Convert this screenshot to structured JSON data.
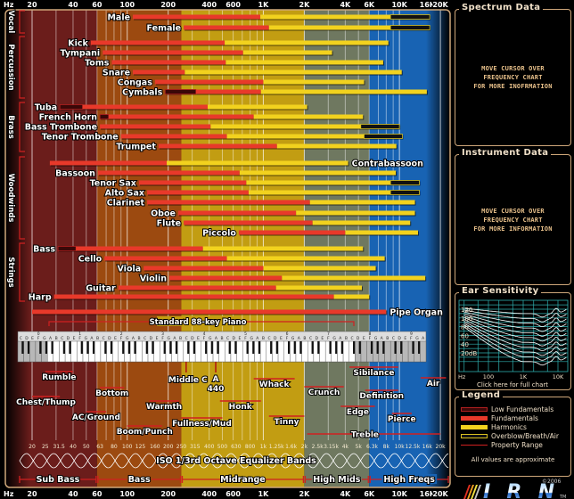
{
  "axis": {
    "unit": "Hz",
    "ticks": [
      {
        "label": "20",
        "hz": 20
      },
      {
        "label": "40",
        "hz": 40
      },
      {
        "label": "60",
        "hz": 60
      },
      {
        "label": "100",
        "hz": 100
      },
      {
        "label": "200",
        "hz": 200
      },
      {
        "label": "400",
        "hz": 400
      },
      {
        "label": "600",
        "hz": 600
      },
      {
        "label": "1K",
        "hz": 1000
      },
      {
        "label": "2K",
        "hz": 2000
      },
      {
        "label": "4K",
        "hz": 4000
      },
      {
        "label": "6K",
        "hz": 6000
      },
      {
        "label": "10K",
        "hz": 10000
      },
      {
        "label": "16K",
        "hz": 16000
      },
      {
        "label": "20K",
        "hz": 20000
      }
    ],
    "range_hz": [
      20,
      20000
    ],
    "scale": "log"
  },
  "groups": [
    "Vocal",
    "Percussion",
    "Brass",
    "Woodwinds",
    "Strings"
  ],
  "colors": {
    "sub_bass": "#6b1d1b",
    "bass": "#9c4a10",
    "midrange": "#c29d12",
    "high_mids": "#6f7860",
    "high_freqs": "#1863b3",
    "low_fundamentals": "#3a0808",
    "fundamentals": "#e8392a",
    "harmonics": "#f2d21e",
    "overblow": "#111111",
    "property_range": "#d02020",
    "frame": "#cfa77a"
  },
  "chart_data": {
    "type": "range-bar",
    "x_scale": "log",
    "xlim": [
      20,
      20000
    ],
    "instruments": [
      {
        "name": "Male",
        "group": "Vocal",
        "fund": [
          110,
          950
        ],
        "harm": [
          950,
          8600
        ],
        "over": [
          8600,
          16700
        ]
      },
      {
        "name": "Female",
        "group": "Vocal",
        "fund": [
          260,
          1100
        ],
        "harm": [
          1100,
          8600
        ],
        "over": [
          8600,
          16700
        ]
      },
      {
        "name": "Kick",
        "group": "Percussion",
        "fund": [
          54,
          520
        ],
        "harm": [
          520,
          8300
        ]
      },
      {
        "name": "Tympani",
        "group": "Percussion",
        "fund": [
          66,
          710
        ],
        "harm": [
          710,
          3200
        ]
      },
      {
        "name": "Toms",
        "group": "Percussion",
        "fund": [
          77,
          530
        ],
        "harm": [
          530,
          7600
        ]
      },
      {
        "name": "Snare",
        "group": "Percussion",
        "fund": [
          110,
          265
        ],
        "harm": [
          265,
          10400
        ]
      },
      {
        "name": "Congas",
        "group": "Percussion",
        "fund": [
          160,
          1000
        ],
        "harm": [
          1000,
          5500
        ]
      },
      {
        "name": "Cymbals",
        "group": "Percussion",
        "low": [
          190,
          320
        ],
        "fund": [
          320,
          960
        ],
        "harm": [
          960,
          15900
        ]
      },
      {
        "name": "Tuba",
        "group": "Brass",
        "low": [
          32,
          47
        ],
        "fund": [
          47,
          390
        ],
        "harm": [
          390,
          2100
        ]
      },
      {
        "name": "French Horn",
        "group": "Brass",
        "low": [
          63,
          73
        ],
        "fund": [
          73,
          850
        ],
        "harm": [
          850,
          5400
        ]
      },
      {
        "name": "Bass Trombone",
        "group": "Brass",
        "fund": [
          63,
          410
        ],
        "harm": [
          410,
          5200
        ],
        "over": [
          5200,
          10000
        ]
      },
      {
        "name": "Tenor Trombone",
        "group": "Brass",
        "fund": [
          90,
          540
        ],
        "harm": [
          540,
          5500
        ],
        "over": [
          5500,
          10500
        ]
      },
      {
        "name": "Trumpet",
        "group": "Brass",
        "fund": [
          170,
          1260
        ],
        "harm": [
          1260,
          9500
        ]
      },
      {
        "name": "Contrabassoon",
        "group": "Woodwinds",
        "fund": [
          27,
          195
        ],
        "harm": [
          195,
          4200
        ],
        "label_side": "right"
      },
      {
        "name": "Bassoon",
        "group": "Woodwinds",
        "fund": [
          61,
          670
        ],
        "harm": [
          670,
          9400
        ]
      },
      {
        "name": "Tenor Sax",
        "group": "Woodwinds",
        "fund": [
          122,
          750
        ],
        "harm": [
          750,
          8600
        ],
        "over": [
          8600,
          14000
        ]
      },
      {
        "name": "Alto Sax",
        "group": "Woodwinds",
        "fund": [
          140,
          780
        ],
        "harm": [
          780,
          8600
        ],
        "over": [
          8600,
          14000
        ]
      },
      {
        "name": "Clarinet",
        "group": "Woodwinds",
        "fund": [
          140,
          2200
        ],
        "harm": [
          2200,
          13000
        ]
      },
      {
        "name": "Oboe",
        "group": "Woodwinds",
        "fund": [
          237,
          1740
        ],
        "harm": [
          1740,
          13000
        ]
      },
      {
        "name": "Flute",
        "group": "Woodwinds",
        "fund": [
          260,
          2300
        ],
        "harm": [
          2300,
          12000
        ]
      },
      {
        "name": "Piccolo",
        "group": "Woodwinds",
        "fund": [
          660,
          4000
        ],
        "harm": [
          4000,
          13700
        ]
      },
      {
        "name": "Bass",
        "group": "Strings",
        "low": [
          31,
          42
        ],
        "fund": [
          42,
          360
        ],
        "harm": [
          360,
          5400
        ]
      },
      {
        "name": "Cello",
        "group": "Strings",
        "fund": [
          68,
          540
        ],
        "harm": [
          540,
          7800
        ]
      },
      {
        "name": "Viola",
        "group": "Strings",
        "fund": [
          132,
          1000
        ],
        "harm": [
          1000,
          6700
        ]
      },
      {
        "name": "Violin",
        "group": "Strings",
        "fund": [
          204,
          1370
        ],
        "harm": [
          1370,
          15500
        ]
      },
      {
        "name": "Guitar",
        "group": "Strings",
        "fund": [
          86,
          1240
        ],
        "harm": [
          1240,
          5300
        ]
      },
      {
        "name": "Harp",
        "group": "Strings",
        "fund": [
          29,
          3300
        ],
        "harm": [
          3300,
          6000
        ]
      },
      {
        "name": "Pipe Organ",
        "group": "",
        "fund": [
          20,
          8000
        ],
        "label_side": "right"
      }
    ],
    "piano": {
      "label": "Standard 88-key Piano",
      "range_hz": [
        27.5,
        4186
      ],
      "octaves": [
        "0",
        "1",
        "2",
        "3",
        "4",
        "5",
        "6",
        "7",
        "8",
        "9"
      ],
      "note_names": [
        "C",
        "D",
        "E",
        "F",
        "G",
        "A",
        "B"
      ],
      "middle_c": {
        "label": "Middle C",
        "hz": 261.6
      },
      "a440": {
        "label_top": "A",
        "label_bottom": "440",
        "hz": 440
      }
    },
    "properties": [
      {
        "name": "Rumble",
        "range": [
          25,
          40
        ]
      },
      {
        "name": "Chest/Thump",
        "range": [
          20,
          32
        ]
      },
      {
        "name": "Bottom",
        "range": [
          63,
          95
        ]
      },
      {
        "name": "AC/Ground",
        "range": [
          50,
          70
        ]
      },
      {
        "name": "Warmth",
        "range": [
          145,
          240
        ]
      },
      {
        "name": "Boom/Punch",
        "range": [
          100,
          180
        ]
      },
      {
        "name": "Fullness/Mud",
        "range": [
          250,
          500
        ]
      },
      {
        "name": "Honk",
        "range": [
          480,
          960
        ]
      },
      {
        "name": "Whack",
        "range": [
          850,
          1700
        ]
      },
      {
        "name": "Tinny",
        "range": [
          1100,
          2000
        ]
      },
      {
        "name": "Crunch",
        "range": [
          2000,
          3900
        ]
      },
      {
        "name": "Sibilance",
        "range": [
          4300,
          9800
        ]
      },
      {
        "name": "Edge",
        "range": [
          3700,
          6600
        ]
      },
      {
        "name": "Definition",
        "range": [
          5600,
          9800
        ]
      },
      {
        "name": "Pierce",
        "range": [
          8800,
          12300
        ]
      },
      {
        "name": "Air",
        "range": [
          14300,
          22000
        ]
      },
      {
        "name": "Treble",
        "range": [
          2100,
          20000
        ]
      }
    ],
    "eq_bands": {
      "label": "ISO 1/3rd Octave Equalizer Bands",
      "bands": [
        {
          "label": "20",
          "hz": 20
        },
        {
          "label": "25",
          "hz": 25
        },
        {
          "label": "31.5",
          "hz": 31.5
        },
        {
          "label": "40",
          "hz": 40
        },
        {
          "label": "50",
          "hz": 50
        },
        {
          "label": "63",
          "hz": 63
        },
        {
          "label": "80",
          "hz": 80
        },
        {
          "label": "100",
          "hz": 100
        },
        {
          "label": "125",
          "hz": 125
        },
        {
          "label": "160",
          "hz": 160
        },
        {
          "label": "200",
          "hz": 200
        },
        {
          "label": "250",
          "hz": 250
        },
        {
          "label": "315",
          "hz": 315
        },
        {
          "label": "400",
          "hz": 400
        },
        {
          "label": "500",
          "hz": 500
        },
        {
          "label": "630",
          "hz": 630
        },
        {
          "label": "800",
          "hz": 800
        },
        {
          "label": "1k",
          "hz": 1000
        },
        {
          "label": "1.25k",
          "hz": 1250
        },
        {
          "label": "1.6k",
          "hz": 1600
        },
        {
          "label": "2k",
          "hz": 2000
        },
        {
          "label": "2.5k",
          "hz": 2500
        },
        {
          "label": "3.15k",
          "hz": 3150
        },
        {
          "label": "4k",
          "hz": 4000
        },
        {
          "label": "5k",
          "hz": 5000
        },
        {
          "label": "6.3k",
          "hz": 6300
        },
        {
          "label": "8k",
          "hz": 8000
        },
        {
          "label": "10k",
          "hz": 10000
        },
        {
          "label": "12.5k",
          "hz": 12500
        },
        {
          "label": "16k",
          "hz": 16000
        },
        {
          "label": "20k",
          "hz": 20000
        }
      ]
    },
    "ranges": [
      {
        "name": "Sub Bass",
        "range": [
          20,
          60
        ],
        "color_key": "sub_bass"
      },
      {
        "name": "Bass",
        "range": [
          60,
          250
        ],
        "color_key": "bass"
      },
      {
        "name": "Midrange",
        "range": [
          250,
          2000
        ],
        "color_key": "midrange"
      },
      {
        "name": "High Mids",
        "range": [
          2000,
          6000
        ],
        "color_key": "high_mids"
      },
      {
        "name": "High Freqs",
        "range": [
          6000,
          20000
        ],
        "color_key": "high_freqs"
      }
    ]
  },
  "side": {
    "spectrum": {
      "title": "Spectrum Data",
      "message": [
        "MOVE CURSOR OVER",
        "FREQUENCY CHART",
        "FOR MORE INOFRMATION"
      ]
    },
    "instrument": {
      "title": "Instrument Data",
      "message": [
        "MOVE CURSOR OVER",
        "FREQUENCY CHART",
        "FOR MORE INFORMATION"
      ]
    },
    "ear": {
      "title": "Ear Sensitivity",
      "y_labels": [
        "120",
        "100",
        "80",
        "60",
        "40",
        "20dB"
      ],
      "x_unit": "Hz",
      "x_labels": [
        "100",
        "1K",
        "10K"
      ],
      "link": "Click here for full chart"
    },
    "legend": {
      "title": "Legend",
      "items": [
        "Low Fundamentals",
        "Fundamentals",
        "Harmonics",
        "Overblow/Breath/Air",
        "Property Range"
      ],
      "note": "All values are approximate"
    },
    "copyright": "©2006",
    "logo": {
      "text": "IRN",
      "tm": "TM"
    }
  }
}
